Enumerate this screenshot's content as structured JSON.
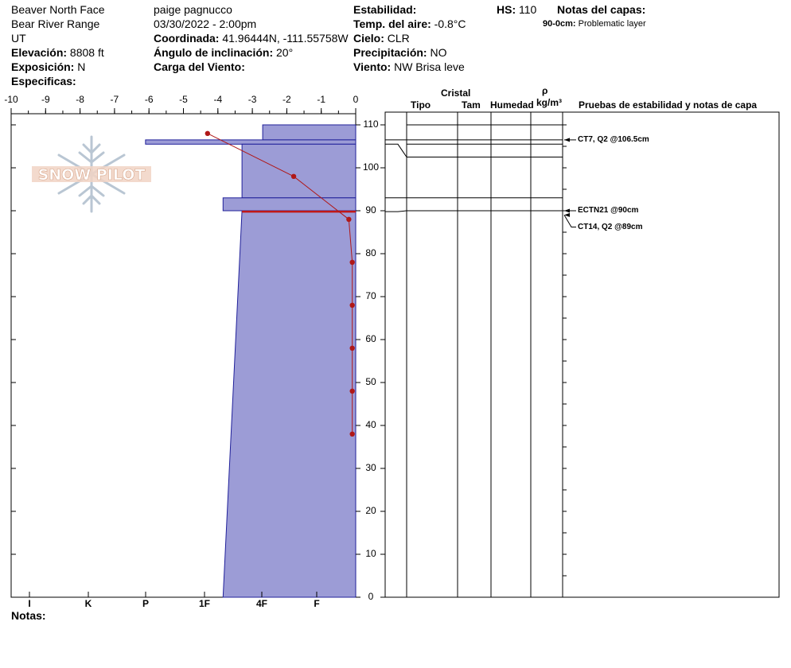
{
  "header": {
    "location": "Beaver North Face",
    "range": "Bear River Range",
    "state": "UT",
    "elevation_label": "Elevación:",
    "elevation_value": "8808 ft",
    "aspect_label": "Exposición:",
    "aspect_value": "N",
    "specifics_label": "Especificas:",
    "observer": "paige pagnucco",
    "datetime": "03/30/2022 - 2:00pm",
    "coord_label": "Coordinada:",
    "coord_value": "41.96444N, -111.55758W",
    "slope_label": "Ángulo de inclinación:",
    "slope_value": "20°",
    "wind_load_label": "Carga del Viento:",
    "stability_label": "Estabilidad:",
    "air_temp_label": "Temp. del aire:",
    "air_temp_value": "-0.8°C",
    "sky_label": "Cielo:",
    "sky_value": "CLR",
    "precip_label": "Precipitación:",
    "precip_value": "NO",
    "wind_label": "Viento:",
    "wind_value": "NW Brisa leve",
    "hs_label": "HS:",
    "hs_value": "110",
    "layer_notes_label": "Notas del capas:",
    "layer_note_depth": "90-0cm:",
    "layer_note_text": "Problematic layer"
  },
  "columns": {
    "crystal": "Cristal",
    "type": "Tipo",
    "size": "Tam",
    "moisture": "Humedad",
    "rho": "ρ",
    "density_unit": "kg/m³",
    "tests": "Pruebas de estabilidad y notas de capa"
  },
  "footer": {
    "notes_label": "Notas:"
  },
  "watermark": {
    "text": "SNOW PILOT",
    "icon": "snowflake-icon"
  },
  "colors": {
    "hardness_fill": "#9c9cd6",
    "hardness_stroke": "#20209a",
    "temp_line": "#b01818",
    "weak_layer": "#c01818"
  },
  "chart_data": {
    "type": "snow-profile",
    "temp_axis": {
      "ticks": [
        "-10",
        "-9",
        "-8",
        "-7",
        "-6",
        "-5",
        "-4",
        "-3",
        "-2",
        "-1",
        "0"
      ],
      "range": [
        -10,
        0
      ]
    },
    "depth_axis": {
      "ticks": [
        "110",
        "100",
        "90",
        "80",
        "70",
        "60",
        "50",
        "40",
        "30",
        "20",
        "10",
        "0"
      ],
      "range": [
        0,
        110
      ]
    },
    "hardness_axis": {
      "ticks": [
        "I",
        "K",
        "P",
        "1F",
        "4F",
        "F"
      ]
    },
    "hardness_layers": [
      {
        "top": 110,
        "bottom": 106.5,
        "width_temp": -2.7
      },
      {
        "top": 106.5,
        "bottom": 105.5,
        "width_temp": -6.1
      },
      {
        "top": 105.5,
        "bottom": 93,
        "width_temp": -3.3
      },
      {
        "top": 93,
        "bottom": 90,
        "width_temp": -3.85
      },
      {
        "top": 90,
        "bottom": 0,
        "width_temp_top": -3.3,
        "width_temp_bottom": -3.85
      }
    ],
    "weak_layer_depth": 89.8,
    "temperature_profile": [
      {
        "depth": 108,
        "temp": -4.3
      },
      {
        "depth": 98,
        "temp": -1.8
      },
      {
        "depth": 88,
        "temp": -0.2
      },
      {
        "depth": 78,
        "temp": -0.1
      },
      {
        "depth": 68,
        "temp": -0.1
      },
      {
        "depth": 58,
        "temp": -0.1
      },
      {
        "depth": 48,
        "temp": -0.1
      },
      {
        "depth": 38,
        "temp": -0.1
      }
    ],
    "layer_boundaries": [
      110,
      106.5,
      105.5,
      102.5,
      93,
      90
    ],
    "stability_tests": [
      {
        "label": "CT7, Q2 @106.5cm",
        "depth": 106.5
      },
      {
        "label": "ECTN21 @90cm",
        "depth": 90
      },
      {
        "label": "CT14, Q2 @89cm",
        "depth": 89
      }
    ]
  }
}
